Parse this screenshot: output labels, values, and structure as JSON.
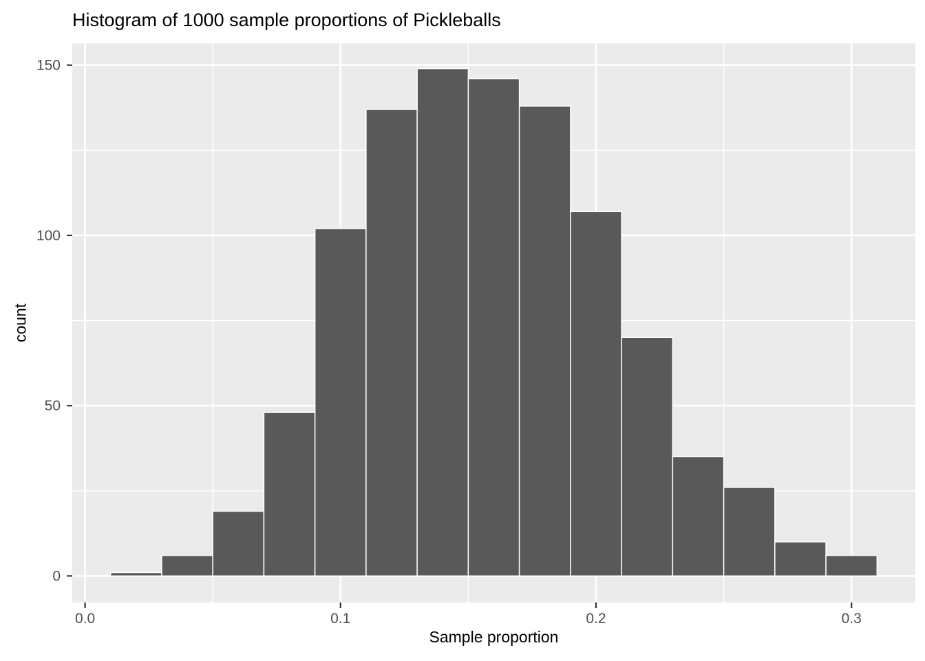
{
  "figure": {
    "title": "Histogram of 1000 sample proportions of Pickleballs",
    "x_axis": {
      "label": "Sample proportion",
      "tick_labels": [
        "0.0",
        "0.1",
        "0.2",
        "0.3"
      ],
      "tick_values": [
        0.0,
        0.1,
        0.2,
        0.3
      ],
      "minor_grid_values": [
        0.05,
        0.15,
        0.25
      ],
      "range": [
        -0.005,
        0.325
      ]
    },
    "y_axis": {
      "label": "count",
      "tick_labels": [
        "0",
        "50",
        "100",
        "150"
      ],
      "tick_values": [
        0,
        50,
        100,
        150
      ],
      "minor_grid_values": [
        25,
        75,
        125
      ],
      "range": [
        -7.8,
        156.4
      ]
    },
    "colors": {
      "panel_background": "#EBEBEB",
      "gridline": "#FFFFFF",
      "bar_fill": "#595959",
      "bar_stroke": "#FFFFFF",
      "tick_mark": "#333333",
      "tick_label": "#4D4D4D",
      "title_text": "#000000"
    }
  },
  "chart_data": {
    "type": "bar",
    "subtype": "histogram",
    "title": "Histogram of 1000 sample proportions of Pickleballs",
    "xlabel": "Sample proportion",
    "ylabel": "count",
    "total_count": 1000,
    "bin_width": 0.02,
    "bin_edges": [
      0.01,
      0.03,
      0.05,
      0.07,
      0.09,
      0.11,
      0.13,
      0.15,
      0.17,
      0.19,
      0.21,
      0.23,
      0.25,
      0.27,
      0.29,
      0.31
    ],
    "categories": [
      0.02,
      0.04,
      0.06,
      0.08,
      0.1,
      0.12,
      0.14,
      0.16,
      0.18,
      0.2,
      0.22,
      0.24,
      0.26,
      0.28,
      0.3
    ],
    "values": [
      1,
      6,
      19,
      48,
      102,
      137,
      149,
      146,
      138,
      107,
      70,
      35,
      26,
      10,
      6
    ],
    "xlim": [
      -0.005,
      0.325
    ],
    "ylim": [
      -7.8,
      156.4
    ],
    "grid": "major and minor white gridlines on grey panel",
    "legend": "none"
  }
}
